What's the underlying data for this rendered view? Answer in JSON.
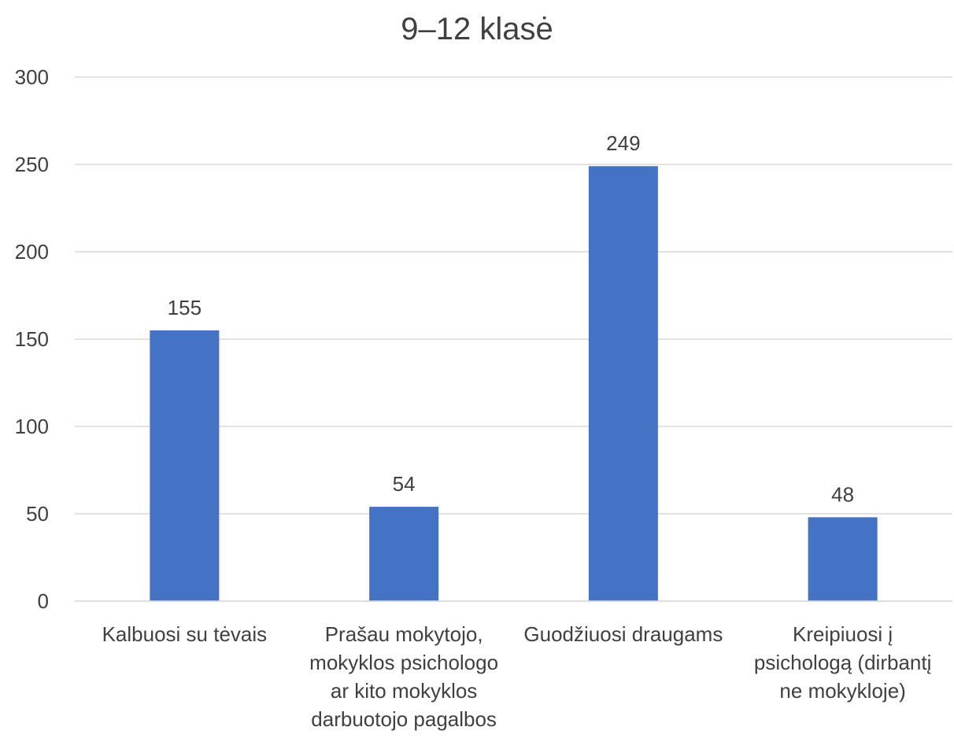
{
  "chart_data": {
    "type": "bar",
    "title": "9–12 klasė",
    "categories": [
      "Kalbuosi su tėvais",
      "Prašau mokytojo,\nmokyklos psichologo\nar kito mokyklos\ndarbuotojo pagalbos",
      "Guodžiuosi draugams",
      "Kreipiuosi į\npsichologą (dirbantį\nne mokykloje)"
    ],
    "series": [
      {
        "values": [
          155,
          54,
          249,
          48
        ]
      }
    ],
    "data_labels": [
      "155",
      "54",
      "249",
      "48"
    ],
    "y_ticks": [
      "0",
      "50",
      "100",
      "150",
      "200",
      "250",
      "300"
    ],
    "ylim": [
      0,
      300
    ],
    "grid": true,
    "legend": "none",
    "colors": {
      "bar": "#4472C4",
      "grid": "#D9D9D9",
      "text": "#404040"
    }
  }
}
